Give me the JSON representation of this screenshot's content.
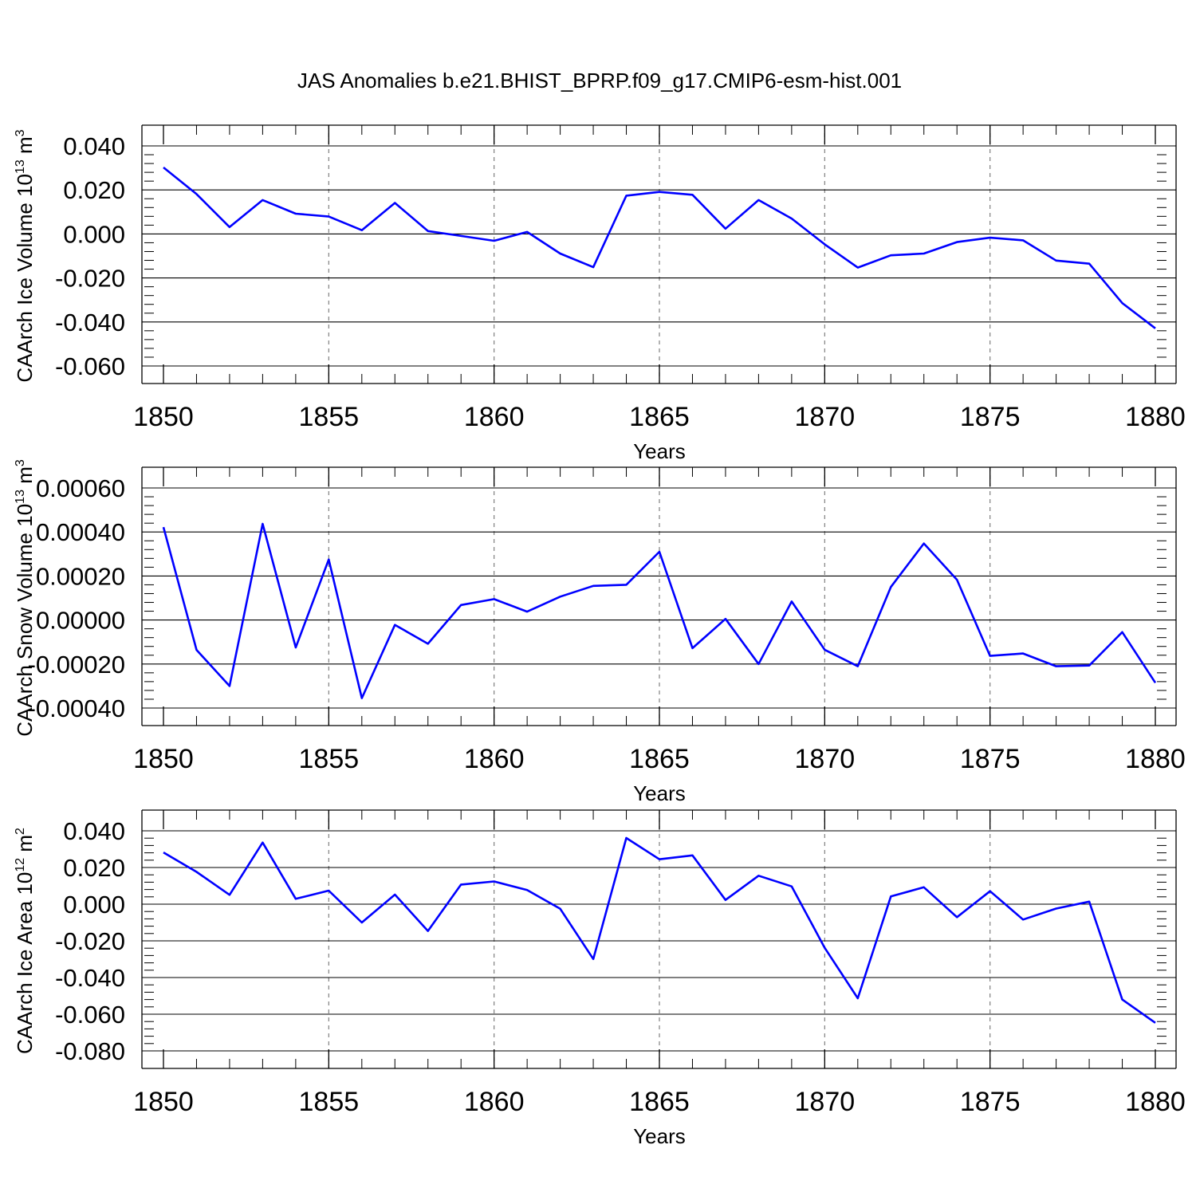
{
  "title": "JAS Anomalies b.e21.BHIST_BPRP.f09_g17.CMIP6-esm-hist.001",
  "colors": {
    "line": "#0000ff",
    "axis": "#000000",
    "grid": "#808080"
  },
  "chart_data": [
    {
      "type": "line",
      "xlabel": "Years",
      "ylabel": {
        "text": "CAArch Ice Volume 10",
        "sup": "13",
        "unit": " m",
        "unit_sup": "3"
      },
      "xlim": [
        1850,
        1880
      ],
      "ylim": [
        -0.06,
        0.04
      ],
      "xticks": [
        1850,
        1855,
        1860,
        1865,
        1870,
        1875,
        1880
      ],
      "yticks": [
        "0.040",
        "0.020",
        "0.000",
        "-0.020",
        "-0.040",
        "-0.060"
      ],
      "ytick_values": [
        0.04,
        0.02,
        0.0,
        -0.02,
        -0.04,
        -0.06
      ],
      "grid": "x-dashed",
      "x": [
        1850,
        1851,
        1852,
        1853,
        1854,
        1855,
        1856,
        1857,
        1858,
        1859,
        1860,
        1861,
        1862,
        1863,
        1864,
        1865,
        1866,
        1867,
        1868,
        1869,
        1870,
        1871,
        1872,
        1873,
        1874,
        1875,
        1876,
        1877,
        1878,
        1879,
        1880
      ],
      "values": [
        0.0302,
        0.0181,
        0.0031,
        0.0154,
        0.0092,
        0.0079,
        0.0017,
        0.0141,
        0.0013,
        -0.0009,
        -0.0031,
        0.0009,
        -0.0089,
        -0.0151,
        0.0174,
        0.0191,
        0.0178,
        0.0024,
        0.0154,
        0.007,
        -0.0047,
        -0.0153,
        -0.0097,
        -0.0089,
        -0.0037,
        -0.0017,
        -0.0029,
        -0.0121,
        -0.0135,
        -0.0314,
        -0.0429
      ]
    },
    {
      "type": "line",
      "xlabel": "Years",
      "ylabel": {
        "text": "CAArch Snow Volume 10",
        "sup": "13",
        "unit": " m",
        "unit_sup": "3"
      },
      "xlim": [
        1850,
        1880
      ],
      "ylim": [
        -0.0004,
        0.0006
      ],
      "xticks": [
        1850,
        1855,
        1860,
        1865,
        1870,
        1875,
        1880
      ],
      "yticks": [
        "0.00060",
        "0.00040",
        "0.00020",
        "0.00000",
        "-0.00020",
        "-0.00040"
      ],
      "ytick_values": [
        0.0006,
        0.0004,
        0.0002,
        0.0,
        -0.0002,
        -0.0004
      ],
      "grid": "x-dashed",
      "x": [
        1850,
        1851,
        1852,
        1853,
        1854,
        1855,
        1856,
        1857,
        1858,
        1859,
        1860,
        1861,
        1862,
        1863,
        1864,
        1865,
        1866,
        1867,
        1868,
        1869,
        1870,
        1871,
        1872,
        1873,
        1874,
        1875,
        1876,
        1877,
        1878,
        1879,
        1880
      ],
      "values": [
        0.000422,
        -0.000136,
        -0.0003,
        0.000437,
        -0.000125,
        0.000275,
        -0.000355,
        -2.2e-05,
        -0.000108,
        6.8e-05,
        9.5e-05,
        3.8e-05,
        0.000106,
        0.000155,
        0.00016,
        0.00031,
        -0.000128,
        5e-06,
        -0.0002,
        8.4e-05,
        -0.000135,
        -0.00021,
        0.00015,
        0.000348,
        0.000183,
        -0.000163,
        -0.000152,
        -0.00021,
        -0.000207,
        -5.5e-05,
        -0.000285
      ]
    },
    {
      "type": "line",
      "xlabel": "Years",
      "ylabel": {
        "text": "CAArch Ice Area 10",
        "sup": "12",
        "unit": " m",
        "unit_sup": "2"
      },
      "xlim": [
        1850,
        1880
      ],
      "ylim": [
        -0.08,
        0.04
      ],
      "xticks": [
        1850,
        1855,
        1860,
        1865,
        1870,
        1875,
        1880
      ],
      "yticks": [
        "0.040",
        "0.020",
        "0.000",
        "-0.020",
        "-0.040",
        "-0.060",
        "-0.080"
      ],
      "ytick_values": [
        0.04,
        0.02,
        0.0,
        -0.02,
        -0.04,
        -0.06,
        -0.08
      ],
      "grid": "x-dashed",
      "x": [
        1850,
        1851,
        1852,
        1853,
        1854,
        1855,
        1856,
        1857,
        1858,
        1859,
        1860,
        1861,
        1862,
        1863,
        1864,
        1865,
        1866,
        1867,
        1868,
        1869,
        1870,
        1871,
        1872,
        1873,
        1874,
        1875,
        1876,
        1877,
        1878,
        1879,
        1880
      ],
      "values": [
        0.0282,
        0.0176,
        0.0051,
        0.0336,
        0.0029,
        0.0074,
        -0.01,
        0.0052,
        -0.0146,
        0.0107,
        0.0124,
        0.0077,
        -0.0025,
        -0.0299,
        0.0361,
        0.0245,
        0.0266,
        0.0023,
        0.0155,
        0.0097,
        -0.0238,
        -0.0513,
        0.0042,
        0.0092,
        -0.0071,
        0.0071,
        -0.0084,
        -0.0024,
        0.0014,
        -0.052,
        -0.0647
      ]
    }
  ]
}
